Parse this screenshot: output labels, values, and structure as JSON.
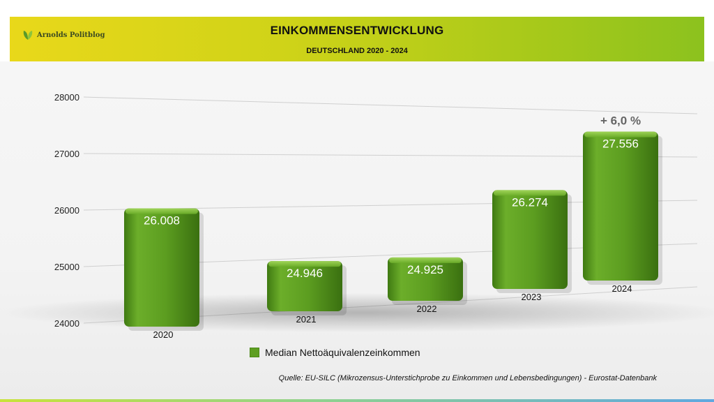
{
  "header": {
    "logo_text": "Arnolds Politblog",
    "title": "EINKOMMENSENTWICKLUNG",
    "subtitle": "DEUTSCHLAND 2020 - 2024"
  },
  "chart_data": {
    "type": "bar",
    "categories": [
      "2020",
      "2021",
      "2022",
      "2023",
      "2024"
    ],
    "series": [
      {
        "name": "Median Nettoäquivalenzeinkommen",
        "values": [
          26008,
          24946,
          24925,
          26274,
          27556
        ],
        "labels": [
          "26.008",
          "24.946",
          "24.925",
          "26.274",
          "27.556"
        ]
      }
    ],
    "title": "EINKOMMENSENTWICKLUNG",
    "subtitle": "DEUTSCHLAND 2020 - 2024",
    "xlabel": "",
    "ylabel": "",
    "ylim": [
      24000,
      28000
    ],
    "yticks": [
      "24000",
      "25000",
      "26000",
      "27000",
      "28000"
    ],
    "grid": true,
    "legend": "bottom",
    "annotation": "+ 6,0 %",
    "bar_color": "#5e9e22"
  },
  "legend": {
    "label": "Median Nettoäquivalenzeinkommen"
  },
  "source": "Quelle: EU-SILC (Mikrozensus-Unterstichprobe zu Einkommen und Lebensbedingungen) - Eurostat-Datenbank"
}
